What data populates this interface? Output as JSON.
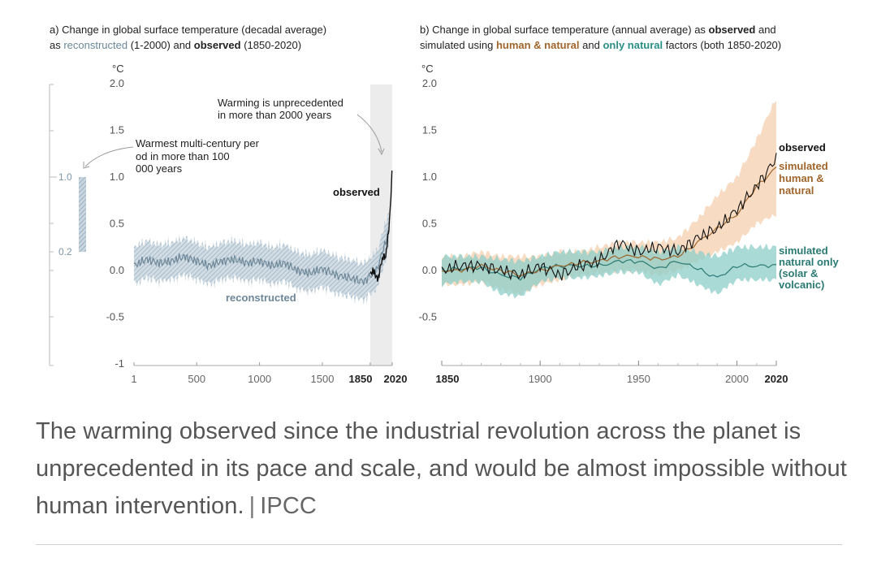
{
  "panel_a": {
    "title_prefix": "a) Change in global surface temperature (decadal average)",
    "title_as": "as ",
    "title_reconstructed": "reconstructed",
    "title_mid": " (1-2000) and ",
    "title_observed": "observed",
    "title_end": " (1850-2020)"
  },
  "panel_b": {
    "title_prefix": "b) Change in global surface temperature (annual average) as ",
    "title_observed": "observed",
    "title_and": " and",
    "title_sim": "simulated using ",
    "title_human": "human & natural",
    "title_and2": " and ",
    "title_natural": "only natural",
    "title_end": " factors (both 1850-2020)"
  },
  "colors": {
    "reconstructed": "#8fa7b8",
    "observed": "#111111",
    "human_band": "#f5d3b4",
    "human_line": "#a0652b",
    "natural_band": "#8dcdc8",
    "natural_line": "#2a7a73",
    "shade": "#ececec"
  },
  "chart_data": [
    {
      "type": "line",
      "title": "a) Change in global surface temperature (decadal average) as reconstructed (1-2000) and observed (1850-2020)",
      "ylabel": "°C",
      "xlim": [
        1,
        2020
      ],
      "ylim": [
        -1,
        2
      ],
      "yticks": [
        "2.0",
        "1.5",
        "1.0",
        "0.5",
        "0.0",
        "-0.5",
        "-1"
      ],
      "xticks": [
        "1",
        "500",
        "1000",
        "1500",
        "1850",
        "2020"
      ],
      "annotations": [
        "Warming is unprecedented in more than 2000 years",
        "Warmest multi-century period in more than 100,000 years",
        "observed",
        "reconstructed"
      ],
      "side_bar": {
        "labels": [
          "1.0",
          "0.2"
        ],
        "range": [
          0.2,
          1.0
        ]
      },
      "series": [
        {
          "name": "reconstructed",
          "x": [
            1,
            100,
            200,
            300,
            400,
            500,
            600,
            700,
            800,
            900,
            1000,
            1100,
            1200,
            1300,
            1400,
            1500,
            1600,
            1700,
            1800,
            1900,
            2000
          ],
          "values": [
            0.05,
            0.12,
            0.08,
            0.1,
            0.15,
            0.1,
            0.05,
            0.1,
            0.12,
            0.08,
            0.1,
            0.05,
            0.08,
            0.0,
            -0.03,
            0.02,
            -0.05,
            -0.08,
            -0.12,
            0.0,
            0.45
          ]
        },
        {
          "name": "observed",
          "x": [
            1850,
            1870,
            1890,
            1910,
            1930,
            1950,
            1970,
            1990,
            2000,
            2010,
            2020
          ],
          "values": [
            -0.05,
            0.0,
            -0.05,
            -0.1,
            0.05,
            0.15,
            0.15,
            0.4,
            0.55,
            0.8,
            1.1
          ]
        }
      ]
    },
    {
      "type": "line",
      "title": "b) Change in global surface temperature (annual average) as observed and simulated using human & natural and only natural factors (both 1850-2020)",
      "ylabel": "°C",
      "xlim": [
        1850,
        2020
      ],
      "ylim": [
        -0.5,
        2.0
      ],
      "yticks": [
        "2.0",
        "1.5",
        "1.0",
        "0.5",
        "0.0",
        "-0.5"
      ],
      "xticks": [
        "1850",
        "1900",
        "1950",
        "2000",
        "2020"
      ],
      "legend": [
        "observed",
        "simulated human & natural",
        "simulated natural only (solar & volcanic)"
      ],
      "series": [
        {
          "name": "observed",
          "x": [
            1850,
            1860,
            1870,
            1880,
            1890,
            1900,
            1910,
            1920,
            1930,
            1940,
            1950,
            1960,
            1970,
            1980,
            1990,
            2000,
            2010,
            2020
          ],
          "values": [
            0.0,
            0.05,
            0.05,
            0.0,
            -0.05,
            0.05,
            -0.05,
            0.05,
            0.1,
            0.3,
            0.2,
            0.25,
            0.2,
            0.35,
            0.45,
            0.65,
            0.9,
            1.2
          ]
        },
        {
          "name": "simulated human & natural",
          "x": [
            1850,
            1860,
            1870,
            1880,
            1890,
            1900,
            1910,
            1920,
            1930,
            1940,
            1950,
            1960,
            1970,
            1980,
            1990,
            2000,
            2010,
            2020
          ],
          "values": [
            0.0,
            0.0,
            0.05,
            0.0,
            -0.05,
            0.0,
            0.05,
            0.08,
            0.1,
            0.15,
            0.15,
            0.12,
            0.15,
            0.3,
            0.45,
            0.6,
            0.9,
            1.1
          ],
          "band_low": [
            -0.15,
            -0.15,
            -0.12,
            -0.2,
            -0.25,
            -0.15,
            -0.1,
            -0.05,
            -0.03,
            0.0,
            0.0,
            -0.05,
            0.0,
            0.1,
            0.2,
            0.3,
            0.5,
            0.6
          ],
          "band_high": [
            0.15,
            0.15,
            0.2,
            0.15,
            0.15,
            0.15,
            0.2,
            0.2,
            0.25,
            0.3,
            0.3,
            0.3,
            0.35,
            0.55,
            0.8,
            1.0,
            1.4,
            1.85
          ]
        },
        {
          "name": "simulated natural only (solar & volcanic)",
          "x": [
            1850,
            1860,
            1870,
            1880,
            1890,
            1900,
            1910,
            1920,
            1930,
            1940,
            1950,
            1960,
            1970,
            1980,
            1990,
            2000,
            2010,
            2020
          ],
          "values": [
            0.0,
            0.02,
            0.03,
            -0.05,
            -0.08,
            0.02,
            0.05,
            0.05,
            0.05,
            0.1,
            0.1,
            0.02,
            0.1,
            0.02,
            -0.08,
            0.05,
            0.05,
            0.05
          ],
          "band_low": [
            -0.15,
            -0.12,
            -0.12,
            -0.25,
            -0.28,
            -0.12,
            -0.08,
            -0.08,
            -0.06,
            -0.02,
            -0.02,
            -0.15,
            -0.05,
            -0.15,
            -0.25,
            -0.1,
            -0.1,
            -0.1
          ],
          "band_high": [
            0.15,
            0.15,
            0.15,
            0.12,
            0.1,
            0.15,
            0.2,
            0.2,
            0.2,
            0.25,
            0.25,
            0.2,
            0.25,
            0.2,
            0.15,
            0.25,
            0.25,
            0.25
          ]
        }
      ]
    }
  ],
  "caption": {
    "text": "The warming observed since the industrial revolution across the planet is unprecedented in its pace and scale, and would be almost impossible without human intervention.",
    "separator": "|",
    "source": "IPCC"
  }
}
